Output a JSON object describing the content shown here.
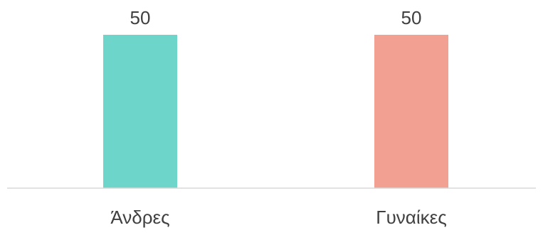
{
  "chart_data": {
    "type": "bar",
    "title": "",
    "xlabel": "",
    "ylabel": "",
    "categories": [
      "Άνδρες",
      "Γυναίκες"
    ],
    "values": [
      50,
      50
    ],
    "data_labels": [
      "50",
      "50"
    ],
    "bar_colors": [
      "#6dd5c9",
      "#f2a092"
    ],
    "ylim": [
      0,
      50
    ],
    "grid": false,
    "legend": "none"
  },
  "colors": {
    "axis": "#d9d9d9",
    "text": "#404040"
  }
}
